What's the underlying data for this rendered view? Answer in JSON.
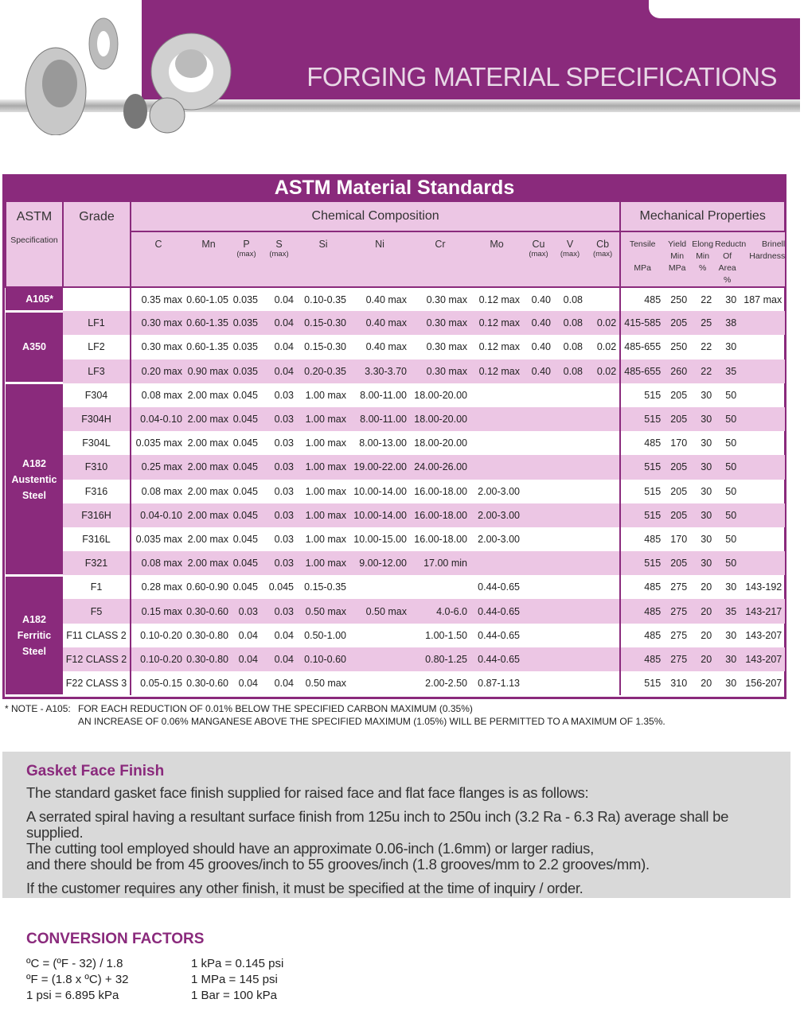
{
  "header": {
    "title": "FORGING MATERIAL SPECIFICATIONS"
  },
  "table": {
    "title": "ASTM Material Standards",
    "headers": {
      "astm": "ASTM",
      "spec": "Specification",
      "grade": "Grade",
      "chem": "Chemical Composition",
      "mech": "Mechanical Properties"
    },
    "chem_cols": [
      [
        "C",
        ""
      ],
      [
        "Mn",
        ""
      ],
      [
        "P",
        "(max)"
      ],
      [
        "S",
        "(max)"
      ],
      [
        "Si",
        ""
      ],
      [
        "Ni",
        ""
      ],
      [
        "Cr",
        ""
      ],
      [
        "Mo",
        ""
      ],
      [
        "Cu",
        "(max)"
      ],
      [
        "V",
        "(max)"
      ],
      [
        "Cb",
        "(max)"
      ]
    ],
    "mech_cols": [
      [
        "Tensile",
        "",
        "MPa"
      ],
      [
        "Yield",
        "Min",
        "MPa"
      ],
      [
        "Elong",
        "Min",
        "%"
      ],
      [
        "Reductn",
        "Of Area",
        "%"
      ],
      [
        "Brinell",
        "Hardness",
        ""
      ]
    ],
    "groups": [
      {
        "spec": "A105*",
        "rows": [
          [
            "",
            "0.35 max",
            "0.60-1.05",
            "0.035",
            "0.04",
            "0.10-0.35",
            "0.40 max",
            "0.30 max",
            "0.12 max",
            "0.40",
            "0.08",
            "",
            "485",
            "250",
            "22",
            "30",
            "187 max"
          ]
        ]
      },
      {
        "spec": "A350",
        "rows": [
          [
            "LF1",
            "0.30 max",
            "0.60-1.35",
            "0.035",
            "0.04",
            "0.15-0.30",
            "0.40 max",
            "0.30 max",
            "0.12 max",
            "0.40",
            "0.08",
            "0.02",
            "415-585",
            "205",
            "25",
            "38",
            ""
          ],
          [
            "LF2",
            "0.30 max",
            "0.60-1.35",
            "0.035",
            "0.04",
            "0.15-0.30",
            "0.40 max",
            "0.30 max",
            "0.12 max",
            "0.40",
            "0.08",
            "0.02",
            "485-655",
            "250",
            "22",
            "30",
            ""
          ],
          [
            "LF3",
            "0.20 max",
            "0.90 max",
            "0.035",
            "0.04",
            "0.20-0.35",
            "3.30-3.70",
            "0.30 max",
            "0.12 max",
            "0.40",
            "0.08",
            "0.02",
            "485-655",
            "260",
            "22",
            "35",
            ""
          ]
        ]
      },
      {
        "spec": "A182 Austentic Steel",
        "rows": [
          [
            "F304",
            "0.08 max",
            "2.00 max",
            "0.045",
            "0.03",
            "1.00 max",
            "8.00-11.00",
            "18.00-20.00",
            "",
            "",
            "",
            "",
            "515",
            "205",
            "30",
            "50",
            ""
          ],
          [
            "F304H",
            "0.04-0.10",
            "2.00 max",
            "0.045",
            "0.03",
            "1.00 max",
            "8.00-11.00",
            "18.00-20.00",
            "",
            "",
            "",
            "",
            "515",
            "205",
            "30",
            "50",
            ""
          ],
          [
            "F304L",
            "0.035 max",
            "2.00 max",
            "0.045",
            "0.03",
            "1.00 max",
            "8.00-13.00",
            "18.00-20.00",
            "",
            "",
            "",
            "",
            "485",
            "170",
            "30",
            "50",
            ""
          ],
          [
            "F310",
            "0.25 max",
            "2.00 max",
            "0.045",
            "0.03",
            "1.00 max",
            "19.00-22.00",
            "24.00-26.00",
            "",
            "",
            "",
            "",
            "515",
            "205",
            "30",
            "50",
            ""
          ],
          [
            "F316",
            "0.08 max",
            "2.00 max",
            "0.045",
            "0.03",
            "1.00 max",
            "10.00-14.00",
            "16.00-18.00",
            "2.00-3.00",
            "",
            "",
            "",
            "515",
            "205",
            "30",
            "50",
            ""
          ],
          [
            "F316H",
            "0.04-0.10",
            "2.00 max",
            "0.045",
            "0.03",
            "1.00 max",
            "10.00-14.00",
            "16.00-18.00",
            "2.00-3.00",
            "",
            "",
            "",
            "515",
            "205",
            "30",
            "50",
            ""
          ],
          [
            "F316L",
            "0.035 max",
            "2.00 max",
            "0.045",
            "0.03",
            "1.00 max",
            "10.00-15.00",
            "16.00-18.00",
            "2.00-3.00",
            "",
            "",
            "",
            "485",
            "170",
            "30",
            "50",
            ""
          ],
          [
            "F321",
            "0.08 max",
            "2.00 max",
            "0.045",
            "0.03",
            "1.00 max",
            "9.00-12.00",
            "17.00 min",
            "",
            "",
            "",
            "",
            "515",
            "205",
            "30",
            "50",
            ""
          ]
        ]
      },
      {
        "spec": "A182 Ferritic Steel",
        "rows": [
          [
            "F1",
            "0.28 max",
            "0.60-0.90",
            "0.045",
            "0.045",
            "0.15-0.35",
            "",
            "",
            "0.44-0.65",
            "",
            "",
            "",
            "485",
            "275",
            "20",
            "30",
            "143-192"
          ],
          [
            "F5",
            "0.15 max",
            "0.30-0.60",
            "0.03",
            "0.03",
            "0.50 max",
            "0.50 max",
            "4.0-6.0",
            "0.44-0.65",
            "",
            "",
            "",
            "485",
            "275",
            "20",
            "35",
            "143-217"
          ],
          [
            "F11 CLASS 2",
            "0.10-0.20",
            "0.30-0.80",
            "0.04",
            "0.04",
            "0.50-1.00",
            "",
            "1.00-1.50",
            "0.44-0.65",
            "",
            "",
            "",
            "485",
            "275",
            "20",
            "30",
            "143-207"
          ],
          [
            "F12 CLASS 2",
            "0.10-0.20",
            "0.30-0.80",
            "0.04",
            "0.04",
            "0.10-0.60",
            "",
            "0.80-1.25",
            "0.44-0.65",
            "",
            "",
            "",
            "485",
            "275",
            "20",
            "30",
            "143-207"
          ],
          [
            "F22 CLASS 3",
            "0.05-0.15",
            "0.30-0.60",
            "0.04",
            "0.04",
            "0.50 max",
            "",
            "2.00-2.50",
            "0.87-1.13",
            "",
            "",
            "",
            "515",
            "310",
            "20",
            "30",
            "156-207"
          ]
        ]
      }
    ]
  },
  "note": {
    "label": "* NOTE - A105:",
    "line1": "FOR EACH REDUCTION OF 0.01% BELOW THE SPECIFIED CARBON MAXIMUM (0.35%)",
    "line2": "AN INCREASE OF 0.06% MANGANESE ABOVE THE SPECIFIED MAXIMUM (1.05%) WILL BE PERMITTED TO A MAXIMUM OF 1.35%."
  },
  "gasket": {
    "title": "Gasket Face Finish",
    "p1": "The standard gasket face finish supplied for raised face and flat face flanges is as follows:",
    "p2a": "A serrated spiral having a resultant surface finish from 125u inch to 250u inch (3.2 Ra - 6.3 Ra) average shall be supplied.",
    "p2b": "The cutting tool employed should have an approximate 0.06-inch (1.6mm) or larger radius,",
    "p2c": "and there should be from 45 grooves/inch to 55 grooves/inch (1.8 grooves/mm to 2.2 grooves/mm).",
    "p3": "If the customer requires any other finish, it must be specified at the time of inquiry / order."
  },
  "conversion": {
    "title": "CONVERSION FACTORS",
    "left": [
      "ºC = (ºF - 32) / 1.8",
      "ºF = (1.8 x ºC) + 32",
      "1 psi = 6.895 kPa"
    ],
    "right": [
      "1 kPa = 0.145 psi",
      "1 MPa = 145 psi",
      "1 Bar = 100 kPa"
    ]
  },
  "colors": {
    "brand": "#8a2a7c",
    "row_alt": "#ecc6e4",
    "gasket_bg": "#d9d9d9"
  }
}
